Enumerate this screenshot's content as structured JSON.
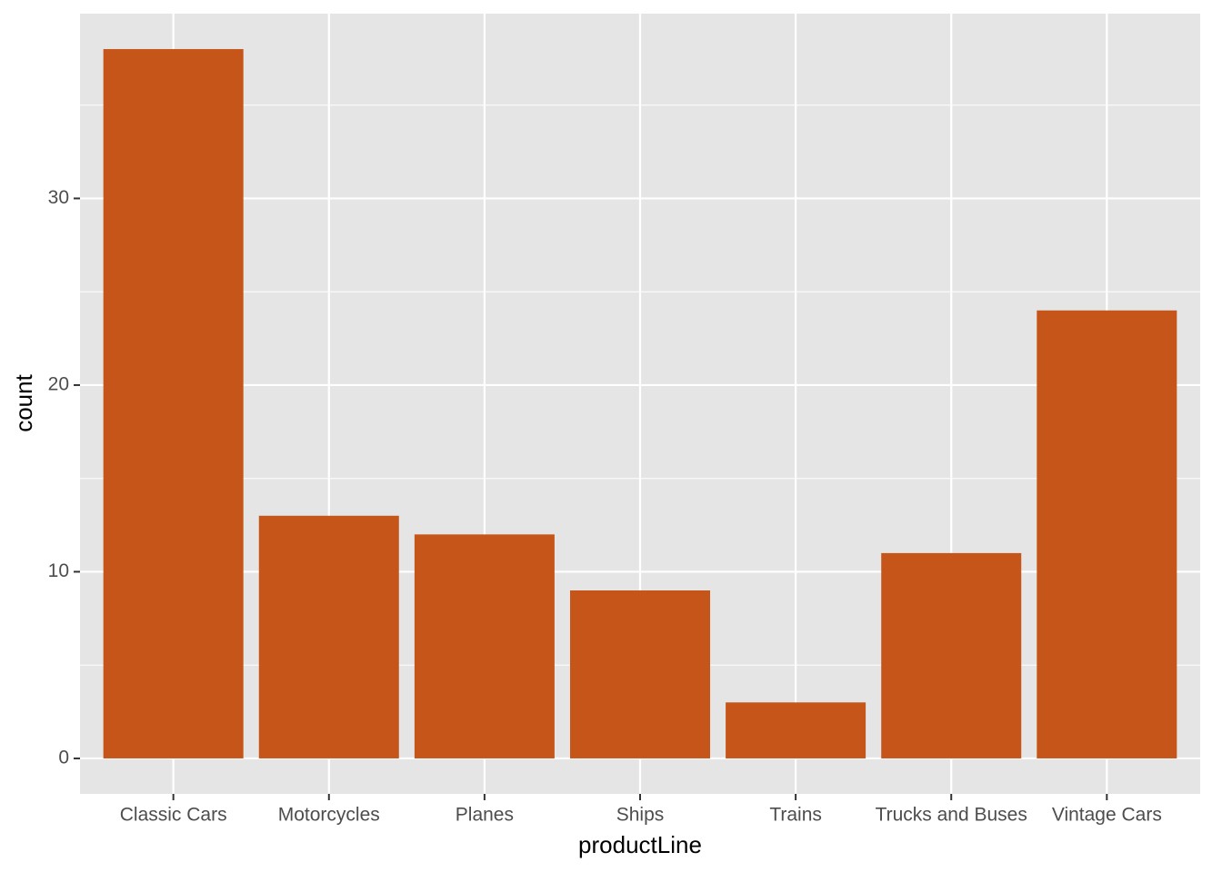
{
  "chart_data": {
    "type": "bar",
    "x_label": "productLine",
    "y_label": "count",
    "categories": [
      "Classic Cars",
      "Motorcycles",
      "Planes",
      "Ships",
      "Trains",
      "Trucks and Buses",
      "Vintage Cars"
    ],
    "values": [
      38,
      13,
      12,
      9,
      3,
      11,
      24
    ],
    "color": "#c55518",
    "ylim": [
      -1.9,
      39.9
    ],
    "yticks": [
      0,
      10,
      20,
      30
    ],
    "grid": true
  }
}
